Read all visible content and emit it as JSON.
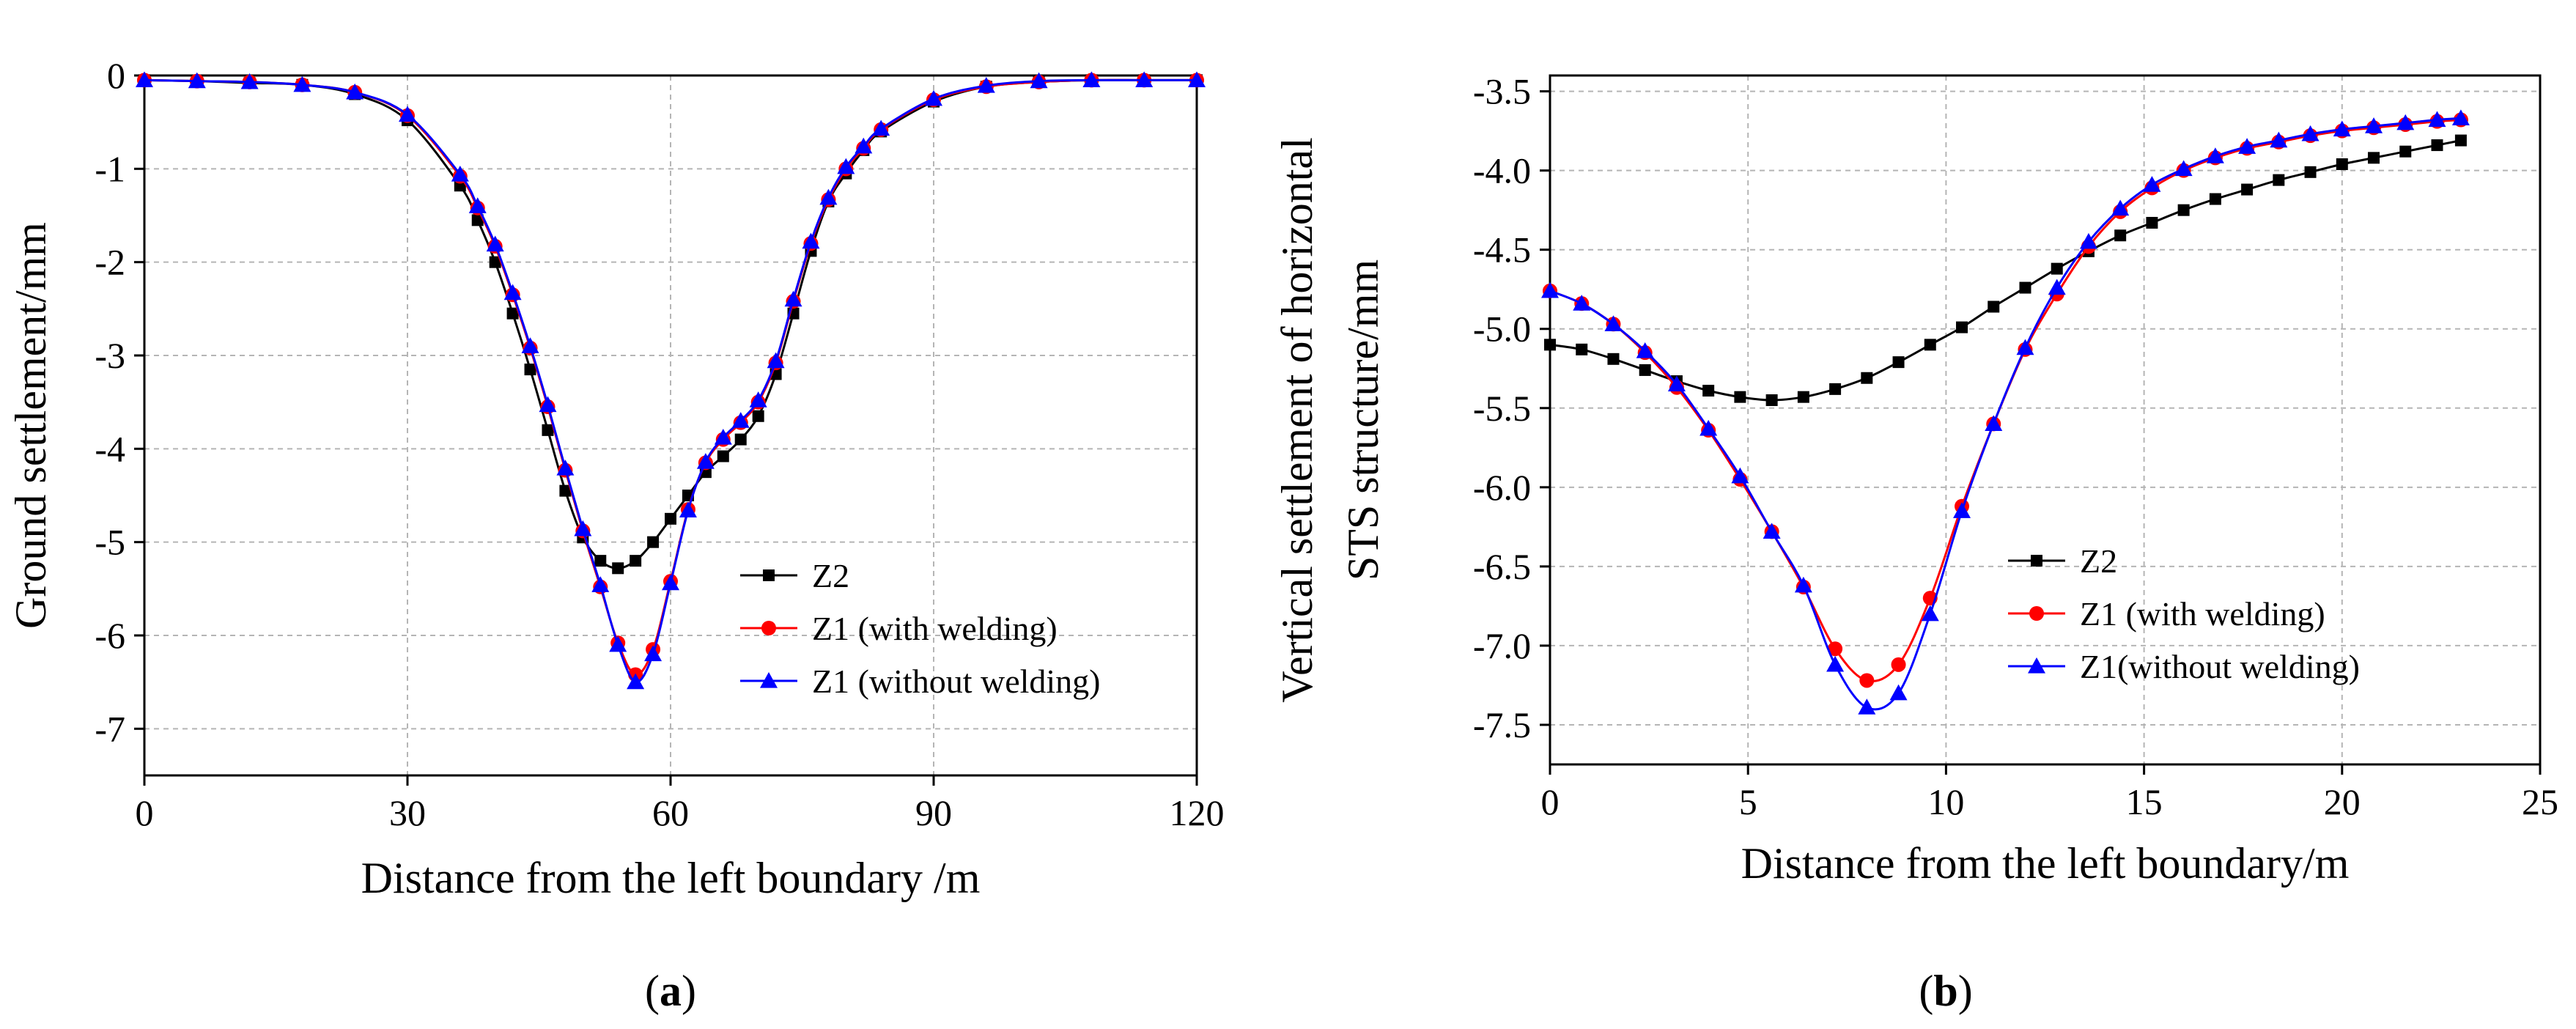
{
  "chart_data": [
    {
      "type": "line",
      "panel_label_open": "(",
      "panel_label_letter": "a",
      "panel_label_close": ")",
      "xlabel": "Distance from the left boundary /m",
      "ylabel": "Ground settlement/mm",
      "xlim": [
        0,
        120
      ],
      "ylim": [
        -7.5,
        0
      ],
      "xticks": [
        0,
        30,
        60,
        90,
        120
      ],
      "yticks": [
        0,
        -1,
        -2,
        -3,
        -4,
        -5,
        -6,
        -7
      ],
      "grid": true,
      "legend_position": "lower-right",
      "series": [
        {
          "name": "Z2",
          "color": "#000000",
          "marker": "square",
          "x": [
            0,
            6,
            12,
            18,
            24,
            30,
            36,
            38,
            40,
            42,
            44,
            46,
            48,
            50,
            52,
            54,
            56,
            58,
            60,
            62,
            64,
            66,
            68,
            70,
            72,
            74,
            76,
            78,
            80,
            82,
            84,
            90,
            96,
            102,
            108,
            114,
            120
          ],
          "y": [
            -0.05,
            -0.06,
            -0.08,
            -0.1,
            -0.2,
            -0.48,
            -1.18,
            -1.55,
            -2.0,
            -2.55,
            -3.15,
            -3.8,
            -4.45,
            -4.95,
            -5.2,
            -5.28,
            -5.2,
            -5.0,
            -4.75,
            -4.5,
            -4.25,
            -4.08,
            -3.9,
            -3.65,
            -3.2,
            -2.55,
            -1.88,
            -1.35,
            -1.05,
            -0.8,
            -0.6,
            -0.28,
            -0.12,
            -0.07,
            -0.05,
            -0.05,
            -0.05
          ]
        },
        {
          "name": "Z1 (with welding)",
          "color": "#ff0000",
          "marker": "circle",
          "x": [
            0,
            6,
            12,
            18,
            24,
            30,
            36,
            38,
            40,
            42,
            44,
            46,
            48,
            50,
            52,
            54,
            56,
            58,
            60,
            62,
            64,
            66,
            68,
            70,
            72,
            74,
            76,
            78,
            80,
            82,
            84,
            90,
            96,
            102,
            108,
            114,
            120
          ],
          "y": [
            -0.05,
            -0.06,
            -0.07,
            -0.1,
            -0.18,
            -0.43,
            -1.08,
            -1.42,
            -1.83,
            -2.35,
            -2.92,
            -3.55,
            -4.23,
            -4.88,
            -5.48,
            -6.08,
            -6.42,
            -6.15,
            -5.42,
            -4.65,
            -4.15,
            -3.9,
            -3.72,
            -3.5,
            -3.08,
            -2.42,
            -1.8,
            -1.33,
            -1.0,
            -0.78,
            -0.58,
            -0.26,
            -0.12,
            -0.07,
            -0.05,
            -0.05,
            -0.05
          ]
        },
        {
          "name": "Z1 (without welding)",
          "color": "#0000ff",
          "marker": "triangle",
          "x": [
            0,
            6,
            12,
            18,
            24,
            30,
            36,
            38,
            40,
            42,
            44,
            46,
            48,
            50,
            52,
            54,
            56,
            58,
            60,
            62,
            64,
            66,
            68,
            70,
            72,
            74,
            76,
            78,
            80,
            82,
            84,
            90,
            96,
            102,
            108,
            114,
            120
          ],
          "y": [
            -0.05,
            -0.06,
            -0.07,
            -0.1,
            -0.18,
            -0.42,
            -1.06,
            -1.4,
            -1.81,
            -2.33,
            -2.9,
            -3.53,
            -4.21,
            -4.86,
            -5.46,
            -6.1,
            -6.5,
            -6.2,
            -5.44,
            -4.66,
            -4.14,
            -3.88,
            -3.7,
            -3.48,
            -3.06,
            -2.4,
            -1.78,
            -1.31,
            -0.98,
            -0.76,
            -0.57,
            -0.25,
            -0.11,
            -0.06,
            -0.05,
            -0.05,
            -0.05
          ]
        }
      ]
    },
    {
      "type": "line",
      "panel_label_open": "(",
      "panel_label_letter": "b",
      "panel_label_close": ")",
      "xlabel": "Distance from the left boundary/m",
      "ylabel_lines": [
        "Vertical settlement of horizontal",
        "STS structure/mm"
      ],
      "xlim": [
        0,
        25
      ],
      "ylim": [
        -7.75,
        -3.4
      ],
      "xticks": [
        0,
        5,
        10,
        15,
        20,
        25
      ],
      "ytick_labels": [
        "-3.5",
        "-4.0",
        "-4.5",
        "-5.0",
        "-5.5",
        "-6.0",
        "-6.5",
        "-7.0",
        "-7.5"
      ],
      "grid": true,
      "legend_position": "lower-right",
      "series": [
        {
          "name": "Z2",
          "color": "#000000",
          "marker": "square",
          "x": [
            0,
            0.8,
            1.6,
            2.4,
            3.2,
            4.0,
            4.8,
            5.6,
            6.4,
            7.2,
            8.0,
            8.8,
            9.6,
            10.4,
            11.2,
            12.0,
            12.8,
            13.6,
            14.4,
            15.2,
            16.0,
            16.8,
            17.6,
            18.4,
            19.2,
            20.0,
            20.8,
            21.6,
            22.4,
            23.0
          ],
          "y": [
            -5.1,
            -5.13,
            -5.19,
            -5.26,
            -5.33,
            -5.39,
            -5.43,
            -5.45,
            -5.43,
            -5.38,
            -5.31,
            -5.21,
            -5.1,
            -4.99,
            -4.86,
            -4.74,
            -4.62,
            -4.51,
            -4.41,
            -4.33,
            -4.25,
            -4.18,
            -4.12,
            -4.06,
            -4.01,
            -3.96,
            -3.92,
            -3.88,
            -3.84,
            -3.81
          ]
        },
        {
          "name": "Z1 (with welding)",
          "color": "#ff0000",
          "marker": "circle",
          "x": [
            0,
            0.8,
            1.6,
            2.4,
            3.2,
            4.0,
            4.8,
            5.6,
            6.4,
            7.2,
            8.0,
            8.8,
            9.6,
            10.4,
            11.2,
            12.0,
            12.8,
            13.6,
            14.4,
            15.2,
            16.0,
            16.8,
            17.6,
            18.4,
            19.2,
            20.0,
            20.8,
            21.6,
            22.4,
            23.0
          ],
          "y": [
            -4.76,
            -4.84,
            -4.97,
            -5.15,
            -5.37,
            -5.64,
            -5.95,
            -6.28,
            -6.63,
            -7.02,
            -7.22,
            -7.12,
            -6.7,
            -6.12,
            -5.6,
            -5.13,
            -4.78,
            -4.48,
            -4.26,
            -4.11,
            -4.0,
            -3.92,
            -3.86,
            -3.82,
            -3.78,
            -3.75,
            -3.73,
            -3.71,
            -3.69,
            -3.68
          ]
        },
        {
          "name": "Z1(without welding)",
          "color": "#0000ff",
          "marker": "triangle",
          "x": [
            0,
            0.8,
            1.6,
            2.4,
            3.2,
            4.0,
            4.8,
            5.6,
            6.4,
            7.2,
            8.0,
            8.8,
            9.6,
            10.4,
            11.2,
            12.0,
            12.8,
            13.6,
            14.4,
            15.2,
            16.0,
            16.8,
            17.6,
            18.4,
            19.2,
            20.0,
            20.8,
            21.6,
            22.4,
            23.0
          ],
          "y": [
            -4.76,
            -4.84,
            -4.97,
            -5.14,
            -5.35,
            -5.63,
            -5.93,
            -6.28,
            -6.62,
            -7.12,
            -7.39,
            -7.3,
            -6.8,
            -6.15,
            -5.6,
            -5.12,
            -4.74,
            -4.45,
            -4.24,
            -4.09,
            -3.99,
            -3.91,
            -3.85,
            -3.81,
            -3.77,
            -3.74,
            -3.72,
            -3.7,
            -3.68,
            -3.67
          ]
        }
      ]
    }
  ]
}
